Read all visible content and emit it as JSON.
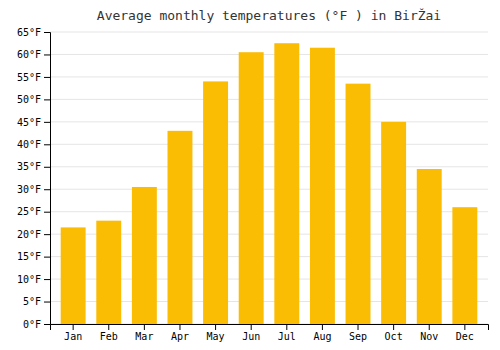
{
  "chart_data": {
    "type": "bar",
    "title": "Average monthly temperatures (°F ) in BirŽai",
    "categories": [
      "Jan",
      "Feb",
      "Mar",
      "Apr",
      "May",
      "Jun",
      "Jul",
      "Aug",
      "Sep",
      "Oct",
      "Nov",
      "Dec"
    ],
    "values": [
      21.5,
      23.0,
      30.5,
      43.0,
      54.0,
      60.5,
      62.5,
      61.5,
      53.5,
      45.0,
      34.5,
      26.0
    ],
    "color": "#FBBC04",
    "ylim": [
      0,
      65
    ],
    "yticks": [
      {
        "value": 0,
        "label": "0°F"
      },
      {
        "value": 5,
        "label": "5°F"
      },
      {
        "value": 10,
        "label": "10°F"
      },
      {
        "value": 15,
        "label": "15°F"
      },
      {
        "value": 20,
        "label": "20°F"
      },
      {
        "value": 25,
        "label": "25°F"
      },
      {
        "value": 30,
        "label": "30°F"
      },
      {
        "value": 35,
        "label": "35°F"
      },
      {
        "value": 40,
        "label": "40°F"
      },
      {
        "value": 45,
        "label": "45°F"
      },
      {
        "value": 50,
        "label": "50°F"
      },
      {
        "value": 55,
        "label": "55°F"
      },
      {
        "value": 60,
        "label": "60°F"
      },
      {
        "value": 65,
        "label": "65°F"
      }
    ],
    "grid": true
  }
}
